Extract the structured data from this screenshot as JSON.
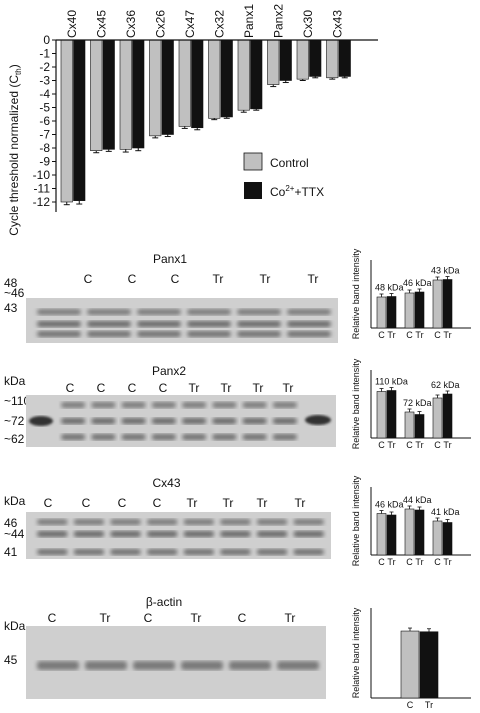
{
  "chart_data": {
    "type": "bar",
    "ylabel": "Cycle threshold normalized (C",
    "ylabel_sub": "th",
    "ylabel_end": ")",
    "categories": [
      "Cx40",
      "Cx45",
      "Cx36",
      "Cx26",
      "Cx47",
      "Cx32",
      "Panx1",
      "Panx2",
      "Cx30",
      "Cx43"
    ],
    "ylim": [
      -12,
      0
    ],
    "yticks": [
      "0",
      "-1",
      "-2",
      "-3",
      "-4",
      "-5",
      "-6",
      "-7",
      "-8",
      "-9",
      "-10",
      "-11",
      "-12"
    ],
    "series": [
      {
        "name": "Control",
        "color": "#c0c0c0",
        "values": [
          -12.0,
          -8.2,
          -8.1,
          -7.1,
          -6.4,
          -5.8,
          -5.2,
          -3.3,
          -2.9,
          -2.8
        ],
        "errors": [
          0.2,
          0.15,
          0.2,
          0.15,
          0.15,
          0.1,
          0.15,
          0.15,
          0.1,
          0.1
        ]
      },
      {
        "name": "Co",
        "color": "#111111",
        "values": [
          -11.9,
          -8.1,
          -8.0,
          -7.0,
          -6.5,
          -5.7,
          -5.1,
          -3.0,
          -2.7,
          -2.7
        ],
        "errors": [
          0.25,
          0.15,
          0.2,
          0.15,
          0.15,
          0.1,
          0.1,
          0.15,
          0.1,
          0.1
        ]
      }
    ],
    "legend": {
      "control": "Control",
      "co_pre": "Co",
      "co_sup": "2+",
      "co_post": "+TTX"
    }
  },
  "blots": [
    {
      "title": "Panx1",
      "kda_label": "",
      "lanes": [
        "C",
        "C",
        "C",
        "Tr",
        "Tr",
        "Tr"
      ],
      "markers": [
        "48",
        "~46",
        "43"
      ],
      "mini": {
        "ylabel": "Relative band intensity",
        "x_labels": [
          "C",
          "Tr",
          "C",
          "Tr",
          "C",
          "Tr"
        ],
        "groups": [
          {
            "label": "48 kDa",
            "c": 0.62,
            "t": 0.63
          },
          {
            "label": "46 kDa",
            "c": 0.7,
            "t": 0.72
          },
          {
            "label": "43 kDa",
            "c": 0.96,
            "t": 0.97
          }
        ]
      }
    },
    {
      "title": "Panx2",
      "kda_label": "kDa",
      "lanes": [
        "C",
        "C",
        "C",
        "C",
        "Tr",
        "Tr",
        "Tr",
        "Tr"
      ],
      "markers": [
        "~110",
        "~72",
        "~62"
      ],
      "mini": {
        "ylabel": "Relative band intensity",
        "x_labels": [
          "C",
          "Tr",
          "C",
          "Tr",
          "C",
          "Tr"
        ],
        "groups": [
          {
            "label": "110 kDa",
            "c": 0.93,
            "t": 0.95
          },
          {
            "label": "72 kDa",
            "c": 0.52,
            "t": 0.47
          },
          {
            "label": "62 kDa",
            "c": 0.8,
            "t": 0.88
          }
        ]
      }
    },
    {
      "title": "Cx43",
      "kda_label": "kDa",
      "lanes": [
        "C",
        "C",
        "C",
        "C",
        "Tr",
        "Tr",
        "Tr",
        "Tr"
      ],
      "markers": [
        "46",
        "~44",
        "41"
      ],
      "mini": {
        "ylabel": "Relative band intensity",
        "x_labels": [
          "C",
          "Tr",
          "C",
          "Tr",
          "C",
          "Tr"
        ],
        "groups": [
          {
            "label": "46 kDa",
            "c": 0.83,
            "t": 0.8
          },
          {
            "label": "44 kDa",
            "c": 0.92,
            "t": 0.9
          },
          {
            "label": "41 kDa",
            "c": 0.68,
            "t": 0.65
          }
        ]
      }
    },
    {
      "title": "β-actin",
      "kda_label": "kDa",
      "lanes": [
        "C",
        "Tr",
        "C",
        "Tr",
        "C",
        "Tr"
      ],
      "markers": [
        "45"
      ],
      "mini": {
        "ylabel": "Relative band intensity",
        "x_labels": [
          "C",
          "Tr"
        ],
        "groups": [
          {
            "label": "",
            "c": 0.93,
            "t": 0.92
          }
        ]
      }
    }
  ]
}
